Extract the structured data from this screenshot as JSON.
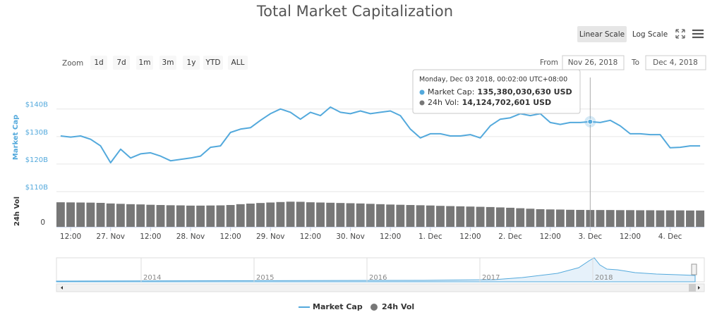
{
  "chart_data": {
    "type": "line",
    "title": "Total Market Capitalization",
    "scale_buttons": [
      "Linear Scale",
      "Log Scale"
    ],
    "zoom_label": "Zoom",
    "zoom_buttons": [
      "1d",
      "7d",
      "1m",
      "3m",
      "1y",
      "YTD",
      "ALL"
    ],
    "from_label": "From",
    "from": "Nov 26, 2018",
    "to_label": "To",
    "to": "Dec 4, 2018",
    "y_label": "Market Cap",
    "y2_label": "24h Vol",
    "tooltip": {
      "date": "Monday, Dec 03 2018, 00:02:00 UTC+08:00",
      "items": [
        {
          "label": "Market Cap:",
          "value": "135,380,030,630 USD"
        },
        {
          "label": "24h Vol:",
          "value": "14,124,702,601 USD"
        }
      ]
    },
    "xlim": [
      "2018-11-26 07:45",
      "2018-12-04 10:15"
    ],
    "xticks": [
      {
        "value": "2018-11-26 12:00",
        "label": "12:00"
      },
      {
        "value": "2018-11-27 00:00",
        "label": "27. Nov"
      },
      {
        "value": "2018-11-27 12:00",
        "label": "12:00"
      },
      {
        "value": "2018-11-28 00:00",
        "label": "28. Nov"
      },
      {
        "value": "2018-11-28 12:00",
        "label": "12:00"
      },
      {
        "value": "2018-11-29 00:00",
        "label": "29. Nov"
      },
      {
        "value": "2018-11-29 12:00",
        "label": "12:00"
      },
      {
        "value": "2018-11-30 00:00",
        "label": "30. Nov"
      },
      {
        "value": "2018-11-30 12:00",
        "label": "12:00"
      },
      {
        "value": "2018-12-01 00:00",
        "label": "1. Dec"
      },
      {
        "value": "2018-12-01 12:00",
        "label": "12:00"
      },
      {
        "value": "2018-12-02 00:00",
        "label": "2. Dec"
      },
      {
        "value": "2018-12-02 12:00",
        "label": "12:00"
      },
      {
        "value": "2018-12-03 00:00",
        "label": "3. Dec"
      },
      {
        "value": "2018-12-03 12:00",
        "label": "12:00"
      },
      {
        "value": "2018-12-04 00:00",
        "label": "4. Dec"
      }
    ],
    "ylim": [
      110000000000.0,
      154000000000.0
    ],
    "yticks": [
      {
        "value": 110000000000.0,
        "label": "$110B"
      },
      {
        "value": 120000000000.0,
        "label": "$120B"
      },
      {
        "value": 130000000000.0,
        "label": "$130B"
      },
      {
        "value": 140000000000.0,
        "label": "$140B"
      }
    ],
    "y2lim": [
      0,
      26000000000.0
    ],
    "y2ticks": [
      0
    ],
    "x": [
      "2018-11-26 09:00",
      "2018-11-26 12:00",
      "2018-11-26 15:00",
      "2018-11-26 18:00",
      "2018-11-26 21:00",
      "2018-11-27 00:00",
      "2018-11-27 03:00",
      "2018-11-27 06:00",
      "2018-11-27 09:00",
      "2018-11-27 12:00",
      "2018-11-27 15:00",
      "2018-11-27 18:00",
      "2018-11-27 21:00",
      "2018-11-28 00:00",
      "2018-11-28 03:00",
      "2018-11-28 06:00",
      "2018-11-28 09:00",
      "2018-11-28 12:00",
      "2018-11-28 15:00",
      "2018-11-28 18:00",
      "2018-11-28 21:00",
      "2018-11-29 00:00",
      "2018-11-29 03:00",
      "2018-11-29 06:00",
      "2018-11-29 09:00",
      "2018-11-29 12:00",
      "2018-11-29 15:00",
      "2018-11-29 18:00",
      "2018-11-29 21:00",
      "2018-11-30 00:00",
      "2018-11-30 03:00",
      "2018-11-30 06:00",
      "2018-11-30 09:00",
      "2018-11-30 12:00",
      "2018-11-30 15:00",
      "2018-11-30 18:00",
      "2018-11-30 21:00",
      "2018-12-01 00:00",
      "2018-12-01 03:00",
      "2018-12-01 06:00",
      "2018-12-01 09:00",
      "2018-12-01 12:00",
      "2018-12-01 15:00",
      "2018-12-01 18:00",
      "2018-12-01 21:00",
      "2018-12-02 00:00",
      "2018-12-02 03:00",
      "2018-12-02 06:00",
      "2018-12-02 09:00",
      "2018-12-02 12:00",
      "2018-12-02 15:00",
      "2018-12-02 18:00",
      "2018-12-02 21:00",
      "2018-12-03 00:00",
      "2018-12-03 03:00",
      "2018-12-03 06:00",
      "2018-12-03 09:00",
      "2018-12-03 12:00",
      "2018-12-03 15:00",
      "2018-12-03 18:00",
      "2018-12-03 21:00",
      "2018-12-04 00:00",
      "2018-12-04 03:00",
      "2018-12-04 06:00",
      "2018-12-04 09:00"
    ],
    "series": [
      {
        "name": "Market Cap",
        "color": "#53a9dc",
        "values": [
          130200000000.0,
          129800000000.0,
          130200000000.0,
          129000000000.0,
          126600000000.0,
          120500000000.0,
          125400000000.0,
          122200000000.0,
          123700000000.0,
          124100000000.0,
          122900000000.0,
          121200000000.0,
          121700000000.0,
          122200000000.0,
          122900000000.0,
          126100000000.0,
          126600000000.0,
          131500000000.0,
          132700000000.0,
          133200000000.0,
          135900000000.0,
          138300000000.0,
          140000000000.0,
          138800000000.0,
          136300000000.0,
          138800000000.0,
          137600000000.0,
          140700000000.0,
          138800000000.0,
          138300000000.0,
          139300000000.0,
          138300000000.0,
          138800000000.0,
          139300000000.0,
          137600000000.0,
          132700000000.0,
          129500000000.0,
          131000000000.0,
          131000000000.0,
          130200000000.0,
          130200000000.0,
          130700000000.0,
          129500000000.0,
          133900000000.0,
          136300000000.0,
          136800000000.0,
          138300000000.0,
          137600000000.0,
          138300000000.0,
          135100000000.0,
          134400000000.0,
          135100000000.0,
          135100000000.0,
          135380030630,
          135100000000.0,
          135900000000.0,
          133900000000.0,
          131000000000.0,
          131000000000.0,
          130700000000.0,
          130700000000.0,
          125900000000.0,
          126100000000.0,
          126600000000.0,
          126600000000.0
        ]
      },
      {
        "name": "24h Vol",
        "color": "#777777",
        "axis": "y2",
        "values": [
          20600000000.0,
          20500000000.0,
          20400000000.0,
          20300000000.0,
          20100000000.0,
          19600000000.0,
          19300000000.0,
          19000000000.0,
          18800000000.0,
          18500000000.0,
          18300000000.0,
          18100000000.0,
          18000000000.0,
          17800000000.0,
          17800000000.0,
          17900000000.0,
          18000000000.0,
          18300000000.0,
          19000000000.0,
          19500000000.0,
          20000000000.0,
          20400000000.0,
          20800000000.0,
          21100000000.0,
          21000000000.0,
          20600000000.0,
          20400000000.0,
          20200000000.0,
          20000000000.0,
          19800000000.0,
          19600000000.0,
          19300000000.0,
          19000000000.0,
          18700000000.0,
          18500000000.0,
          18300000000.0,
          18100000000.0,
          17900000000.0,
          17600000000.0,
          17400000000.0,
          17200000000.0,
          17000000000.0,
          16800000000.0,
          16600000000.0,
          16300000000.0,
          16000000000.0,
          15600000000.0,
          15200000000.0,
          14800000000.0,
          14600000000.0,
          14500000000.0,
          14300000000.0,
          14200000000.0,
          14124702601,
          14100000000.0,
          14100000000.0,
          14000000000.0,
          14000000000.0,
          13900000000.0,
          13900000000.0,
          13800000000.0,
          13800000000.0,
          13800000000.0,
          13700000000.0,
          13700000000.0
        ]
      }
    ],
    "navigator_labels": [
      "2014",
      "2015",
      "2016",
      "2017",
      "2018"
    ]
  }
}
